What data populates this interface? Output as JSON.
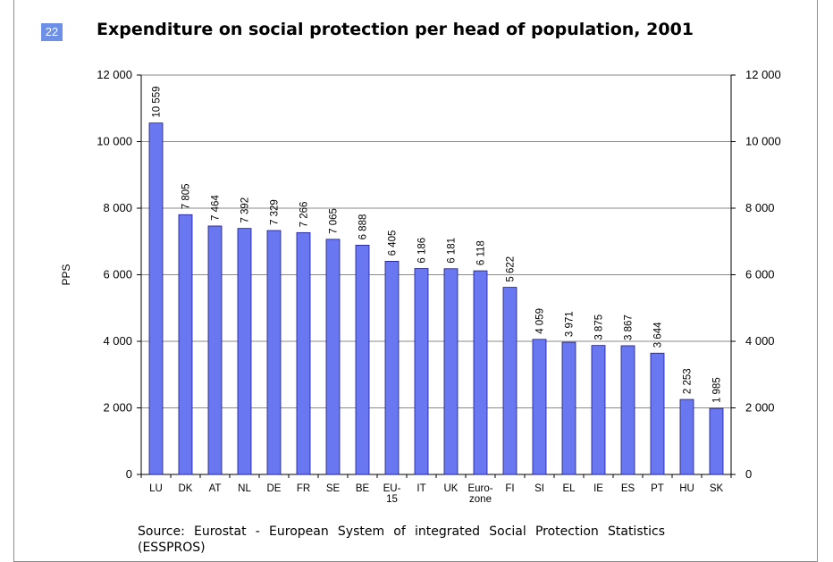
{
  "badge": "22",
  "title": "Expenditure on social protection per head of population, 2001",
  "source": "Source: Eurostat - European System of integrated Social Protection Statistics (ESSPROS)",
  "chart_data": {
    "type": "bar",
    "title": "Expenditure on social protection per head of population, 2001",
    "ylabel": "PPS",
    "xlabel": "",
    "ylim": [
      0,
      12000
    ],
    "yticks": [
      0,
      2000,
      4000,
      6000,
      8000,
      10000,
      12000
    ],
    "ytick_labels": [
      "0",
      "2 000",
      "4 000",
      "6 000",
      "8 000",
      "10 000",
      "12 000"
    ],
    "secondary_axis": true,
    "grid": true,
    "bar_color": "#6978f0",
    "categories": [
      "LU",
      "DK",
      "AT",
      "NL",
      "DE",
      "FR",
      "SE",
      "BE",
      "EU-15",
      "IT",
      "UK",
      "Euro-zone",
      "FI",
      "SI",
      "EL",
      "IE",
      "ES",
      "PT",
      "HU",
      "SK"
    ],
    "category_lines": [
      [
        "LU"
      ],
      [
        "DK"
      ],
      [
        "AT"
      ],
      [
        "NL"
      ],
      [
        "DE"
      ],
      [
        "FR"
      ],
      [
        "SE"
      ],
      [
        "BE"
      ],
      [
        "EU-",
        "15"
      ],
      [
        "IT"
      ],
      [
        "UK"
      ],
      [
        "Euro-",
        "zone"
      ],
      [
        "FI"
      ],
      [
        "SI"
      ],
      [
        "EL"
      ],
      [
        "IE"
      ],
      [
        "ES"
      ],
      [
        "PT"
      ],
      [
        "HU"
      ],
      [
        "SK"
      ]
    ],
    "values": [
      10559,
      7805,
      7464,
      7392,
      7329,
      7266,
      7065,
      6888,
      6405,
      6186,
      6181,
      6118,
      5622,
      4059,
      3971,
      3875,
      3867,
      3644,
      2253,
      1985
    ],
    "data_labels": [
      "10 559",
      "7 805",
      "7 464",
      "7 392",
      "7 329",
      "7 266",
      "7 065",
      "6 888",
      "6 405",
      "6 186",
      "6 181",
      "6 118",
      "5 622",
      "4 059",
      "3 971",
      "3 875",
      "3 867",
      "3 644",
      "2 253",
      "1 985"
    ]
  }
}
